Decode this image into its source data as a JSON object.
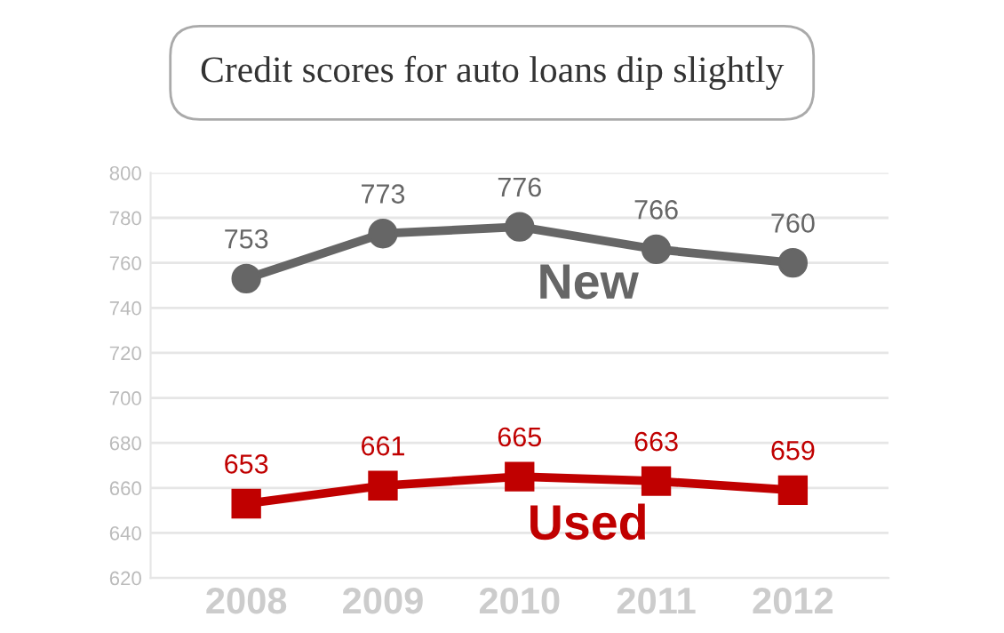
{
  "chart_data": {
    "type": "line",
    "title": "Credit scores for auto loans dip slightly",
    "categories": [
      "2008",
      "2009",
      "2010",
      "2011",
      "2012"
    ],
    "series": [
      {
        "name": "New",
        "color": "#666666",
        "values": [
          753,
          773,
          776,
          766,
          760
        ],
        "marker": "circle"
      },
      {
        "name": "Used",
        "color": "#c00000",
        "values": [
          653,
          661,
          665,
          663,
          659
        ],
        "marker": "square"
      }
    ],
    "ylim": [
      620,
      800
    ],
    "yticks": [
      620,
      640,
      660,
      680,
      700,
      720,
      740,
      760,
      780,
      800
    ],
    "grid": "y",
    "data_labels": true,
    "legend": false,
    "line_style": "solid"
  }
}
